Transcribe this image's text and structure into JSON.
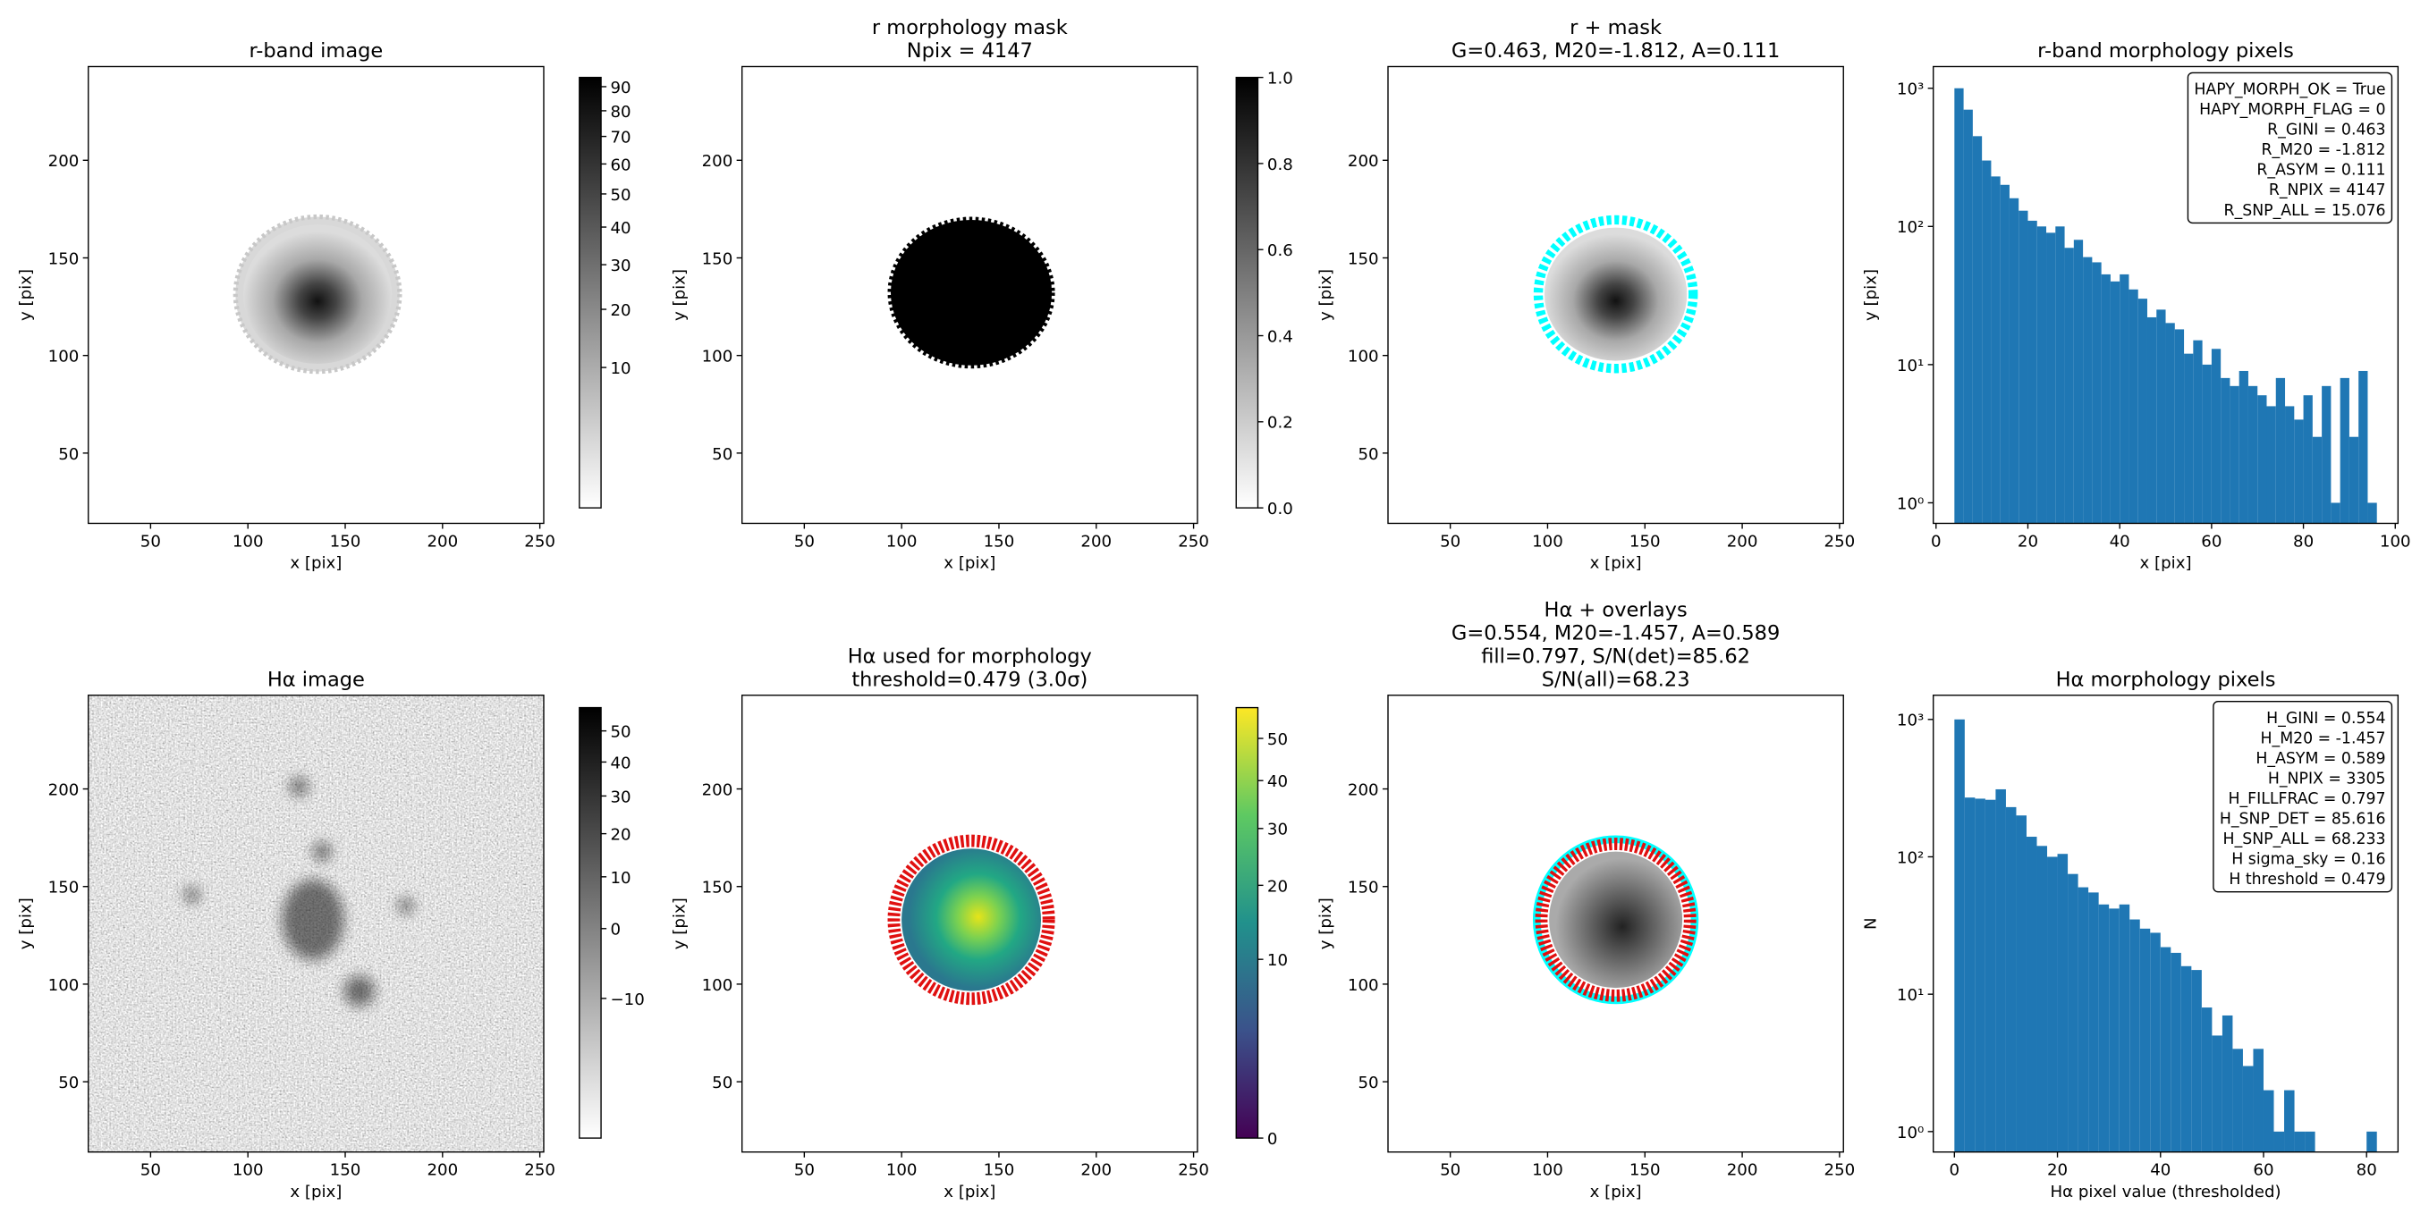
{
  "chart_data": [
    {
      "type": "image",
      "title": [
        "r-band image"
      ],
      "xlabel": "x [pix]",
      "ylabel": "y [pix]",
      "xlim": [
        18,
        252
      ],
      "ylim": [
        14,
        248
      ],
      "xticks": [
        50,
        100,
        150,
        200,
        250
      ],
      "yticks": [
        50,
        100,
        150,
        200
      ],
      "colorbar": {
        "cmap": "gray_r",
        "scale": "sqrt",
        "clim": [
          0,
          94
        ],
        "ticks": [
          10,
          20,
          30,
          40,
          50,
          60,
          70,
          80,
          90
        ]
      }
    },
    {
      "type": "image",
      "title": [
        "r morphology mask",
        "Npix = 4147"
      ],
      "xlabel": "x [pix]",
      "ylabel": "y [pix]",
      "xlim": [
        18,
        252
      ],
      "ylim": [
        14,
        248
      ],
      "xticks": [
        50,
        100,
        150,
        200,
        250
      ],
      "yticks": [
        50,
        100,
        150,
        200
      ],
      "colorbar": {
        "cmap": "gray_r",
        "scale": "linear",
        "clim": [
          0,
          1
        ],
        "ticks": [
          {
            "value": 0,
            "label": "0.0"
          },
          0.2,
          0.4,
          0.6,
          0.8,
          {
            "value": 1,
            "label": "1.0"
          }
        ]
      }
    },
    {
      "type": "image",
      "title": [
        "r + mask",
        "G=0.463, M20=-1.812, A=0.111"
      ],
      "xlabel": "x [pix]",
      "ylabel": "y [pix]",
      "xlim": [
        18,
        252
      ],
      "ylim": [
        14,
        248
      ],
      "xticks": [
        50,
        100,
        150,
        200,
        250
      ],
      "yticks": [
        50,
        100,
        150,
        200
      ]
    },
    {
      "type": "histogram",
      "title": [
        "r-band morphology pixels"
      ],
      "xlabel": "x [pix]",
      "ylabel": "y [pix]",
      "color": "#1f77b4",
      "log_y": true,
      "xlim": [
        -0.6,
        100.6
      ],
      "ylim": [
        0.71,
        1435
      ],
      "xticks": [
        0,
        20,
        40,
        60,
        80,
        100
      ],
      "yticks": [
        {
          "value": 1,
          "label": "10⁰"
        },
        {
          "value": 10,
          "label": "10¹"
        },
        {
          "value": 100,
          "label": "10²"
        },
        {
          "value": 1000,
          "label": "10³"
        }
      ],
      "bins": [
        4,
        6,
        8,
        10,
        12,
        14,
        16,
        18,
        20,
        22,
        24,
        26,
        28,
        30,
        32,
        34,
        36,
        38,
        40,
        42,
        44,
        46,
        48,
        50,
        52,
        54,
        56,
        58,
        60,
        62,
        64,
        66,
        68,
        70,
        72,
        74,
        76,
        78,
        80,
        82,
        84,
        86,
        88,
        90,
        92,
        94,
        96
      ],
      "values": [
        1000,
        700,
        450,
        300,
        230,
        200,
        160,
        130,
        110,
        100,
        90,
        100,
        70,
        80,
        60,
        55,
        45,
        40,
        45,
        35,
        30,
        22,
        25,
        20,
        18,
        12,
        15,
        10,
        13,
        8,
        7,
        9,
        7,
        6,
        5,
        8,
        5,
        4,
        6,
        3,
        7,
        1,
        8,
        3,
        9,
        1
      ],
      "annotation": [
        "HAPY_MORPH_OK = True",
        "HAPY_MORPH_FLAG = 0",
        "R_GINI = 0.463",
        "R_M20 = -1.812",
        "R_ASYM = 0.111",
        "R_NPIX = 4147",
        "R_SNP_ALL = 15.076"
      ],
      "annotation_corner": "upper right"
    },
    {
      "type": "image",
      "title": [
        "Hα image"
      ],
      "xlabel": "x [pix]",
      "ylabel": "y [pix]",
      "xlim": [
        18,
        252
      ],
      "ylim": [
        14,
        248
      ],
      "xticks": [
        50,
        100,
        150,
        200,
        250
      ],
      "yticks": [
        50,
        100,
        150,
        200
      ],
      "colorbar": {
        "cmap": "gray_r",
        "scale": "sqrt",
        "clim": [
          -18,
          58
        ],
        "ticks": [
          {
            "value": -10,
            "label": "−10"
          },
          0,
          10,
          20,
          30,
          40,
          50
        ]
      }
    },
    {
      "type": "image",
      "title": [
        "Hα used for morphology",
        "threshold=0.479 (3.0σ)"
      ],
      "xlabel": "x [pix]",
      "ylabel": "y [pix]",
      "xlim": [
        18,
        252
      ],
      "ylim": [
        14,
        248
      ],
      "xticks": [
        50,
        100,
        150,
        200,
        250
      ],
      "yticks": [
        50,
        100,
        150,
        200
      ],
      "colorbar": {
        "cmap": "viridis",
        "scale": "sqrt",
        "clim": [
          0,
          58
        ],
        "ticks": [
          0,
          10,
          20,
          30,
          40,
          50
        ]
      }
    },
    {
      "type": "image",
      "title": [
        "Hα + overlays",
        "G=0.554, M20=-1.457, A=0.589",
        "fill=0.797, S/N(det)=85.62",
        "S/N(all)=68.23"
      ],
      "xlabel": "x [pix]",
      "ylabel": "y [pix]",
      "xlim": [
        18,
        252
      ],
      "ylim": [
        14,
        248
      ],
      "xticks": [
        50,
        100,
        150,
        200,
        250
      ],
      "yticks": [
        50,
        100,
        150,
        200
      ]
    },
    {
      "type": "histogram",
      "title": [
        "Hα morphology pixels"
      ],
      "xlabel": "Hα pixel value (thresholded)",
      "ylabel": "N",
      "color": "#1f77b4",
      "log_y": true,
      "xlim": [
        -4.1,
        86.1
      ],
      "ylim": [
        0.71,
        1500
      ],
      "xticks": [
        0,
        20,
        40,
        60,
        80
      ],
      "yticks": [
        {
          "value": 1,
          "label": "10⁰"
        },
        {
          "value": 10,
          "label": "10¹"
        },
        {
          "value": 100,
          "label": "10²"
        },
        {
          "value": 1000,
          "label": "10³"
        }
      ],
      "bins": [
        0,
        2,
        4,
        6,
        8,
        10,
        12,
        14,
        16,
        18,
        20,
        22,
        24,
        26,
        28,
        30,
        32,
        34,
        36,
        38,
        40,
        42,
        44,
        46,
        48,
        50,
        52,
        54,
        56,
        58,
        60,
        62,
        64,
        66,
        68,
        70,
        72,
        74,
        76,
        78,
        80,
        82
      ],
      "values": [
        1000,
        270,
        265,
        260,
        310,
        230,
        200,
        140,
        120,
        100,
        105,
        75,
        60,
        55,
        45,
        42,
        45,
        35,
        30,
        28,
        22,
        20,
        16,
        15,
        8,
        5,
        7,
        4,
        3,
        4,
        2,
        1,
        2,
        1,
        1,
        0,
        0,
        0,
        0,
        0,
        1
      ],
      "annotation": [
        "H_GINI = 0.554",
        "H_M20 = -1.457",
        "H_ASYM = 0.589",
        "H_NPIX = 3305",
        "H_FILLFRAC = 0.797",
        "H_SNP_DET = 85.616",
        "H_SNP_ALL = 68.233",
        "H sigma_sky = 0.16",
        "H threshold = 0.479"
      ],
      "annotation_corner": "upper right"
    }
  ]
}
